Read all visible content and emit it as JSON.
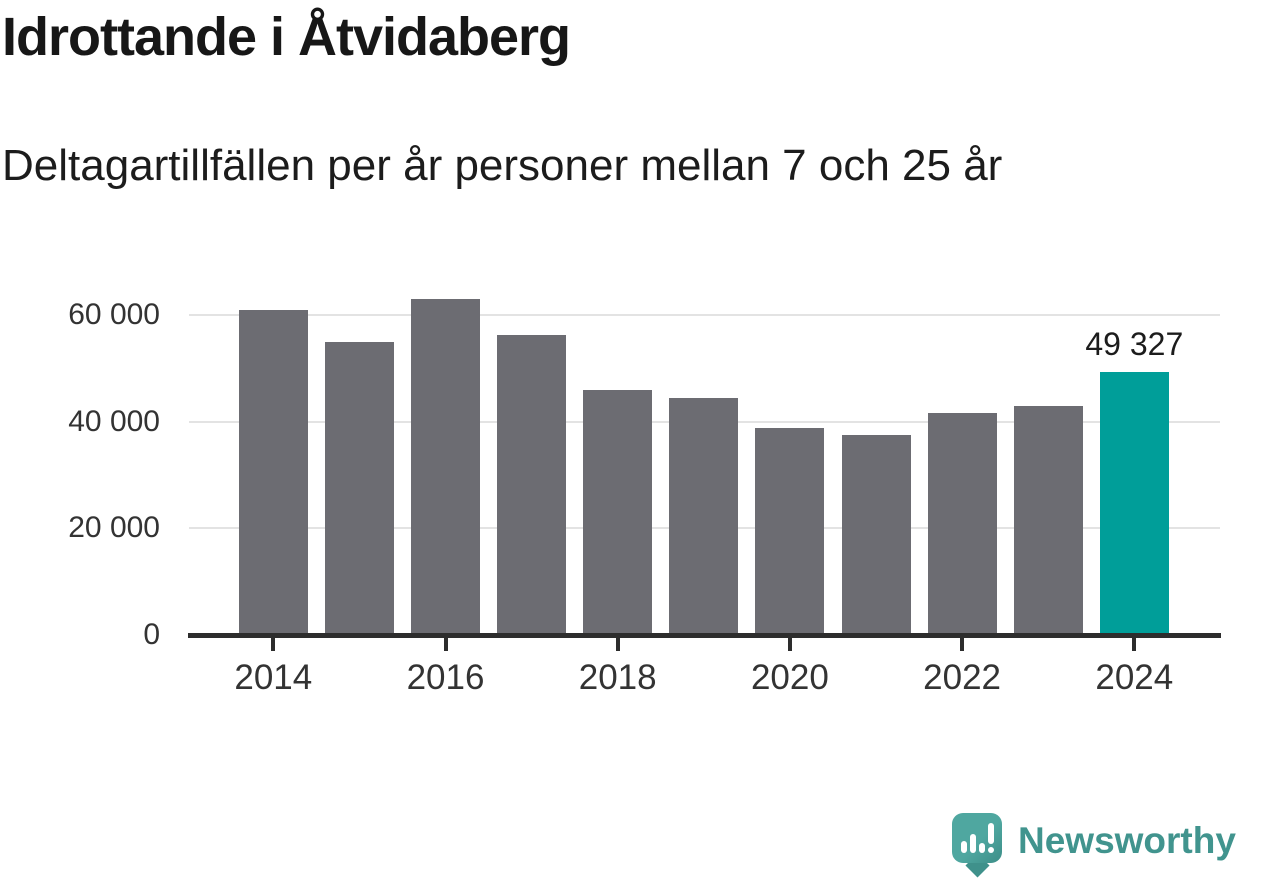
{
  "header": {
    "title": "Idrottande i Åtvidaberg",
    "subtitle": "Deltagartillfällen per år personer mellan 7 och 25 år"
  },
  "chart_data": {
    "type": "bar",
    "title": "Idrottande i Åtvidaberg",
    "subtitle": "Deltagartillfällen per år personer mellan 7 och 25 år",
    "categories": [
      2014,
      2015,
      2016,
      2017,
      2018,
      2019,
      2020,
      2021,
      2022,
      2023,
      2024
    ],
    "values": [
      61000,
      55000,
      63000,
      56300,
      45900,
      44500,
      38800,
      37500,
      41600,
      43000,
      49327
    ],
    "highlight_year": 2024,
    "highlight_value_label": "49 327",
    "xlabel": "",
    "ylabel": "",
    "ylim": [
      0,
      63000
    ],
    "yticks": [
      {
        "value": 0,
        "label": "0"
      },
      {
        "value": 20000,
        "label": "20 000"
      },
      {
        "value": 40000,
        "label": "40 000"
      },
      {
        "value": 60000,
        "label": "60 000"
      }
    ],
    "xtick_labels": [
      "2014",
      "2016",
      "2018",
      "2020",
      "2022",
      "2024"
    ],
    "grid": "horizontal-only",
    "legend": "none",
    "bar_color": "#6c6c72",
    "highlight_color": "#009e99",
    "axis_color": "#2d2d2d",
    "grid_color": "#e3e3e3",
    "text_color": "#333333"
  },
  "footer": {
    "brand": "Newsworthy",
    "brand_color": "#41948e",
    "logo_icon": "speech-bubble-bar-chart-icon"
  }
}
